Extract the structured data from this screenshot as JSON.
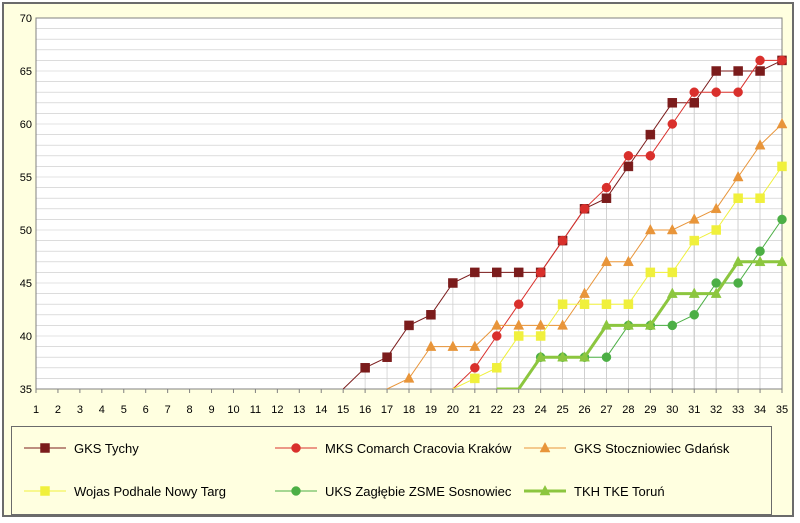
{
  "chart_data": {
    "type": "line",
    "title": "",
    "xlabel": "",
    "ylabel": "",
    "x": [
      1,
      2,
      3,
      4,
      5,
      6,
      7,
      8,
      9,
      10,
      11,
      12,
      13,
      14,
      15,
      16,
      17,
      18,
      19,
      20,
      21,
      22,
      23,
      24,
      25,
      26,
      27,
      28,
      29,
      30,
      31,
      32,
      33,
      34,
      35
    ],
    "xlim": [
      1,
      35
    ],
    "ylim": [
      35,
      70
    ],
    "y_ticks": [
      35,
      40,
      45,
      50,
      55,
      60,
      65,
      70
    ],
    "grid": true,
    "legend_position": "bottom",
    "series": [
      {
        "name": "GKS Tychy",
        "color": "#7b1c1c",
        "marker": "square",
        "width": 1,
        "points": [
          [
            15,
            35
          ],
          [
            16,
            37
          ],
          [
            17,
            38
          ],
          [
            18,
            41
          ],
          [
            19,
            42
          ],
          [
            20,
            45
          ],
          [
            21,
            46
          ],
          [
            22,
            46
          ],
          [
            23,
            46
          ],
          [
            24,
            46
          ],
          [
            25,
            49
          ],
          [
            26,
            52
          ],
          [
            27,
            53
          ],
          [
            28,
            56
          ],
          [
            29,
            59
          ],
          [
            30,
            62
          ],
          [
            31,
            62
          ],
          [
            32,
            65
          ],
          [
            33,
            65
          ],
          [
            34,
            65
          ],
          [
            35,
            66
          ]
        ]
      },
      {
        "name": "MKS Comarch Cracovia Kraków",
        "color": "#d9302c",
        "marker": "circle",
        "width": 1,
        "points": [
          [
            20,
            35
          ],
          [
            21,
            37
          ],
          [
            22,
            40
          ],
          [
            23,
            43
          ],
          [
            24,
            46
          ],
          [
            25,
            49
          ],
          [
            26,
            52
          ],
          [
            27,
            54
          ],
          [
            28,
            57
          ],
          [
            29,
            57
          ],
          [
            30,
            60
          ],
          [
            31,
            63
          ],
          [
            32,
            63
          ],
          [
            33,
            63
          ],
          [
            34,
            66
          ],
          [
            35,
            66
          ]
        ]
      },
      {
        "name": "GKS Stoczniowiec Gdańsk",
        "color": "#e8953a",
        "marker": "triangle",
        "width": 1,
        "points": [
          [
            17,
            35
          ],
          [
            18,
            36
          ],
          [
            19,
            39
          ],
          [
            20,
            39
          ],
          [
            21,
            39
          ],
          [
            22,
            41
          ],
          [
            23,
            41
          ],
          [
            24,
            41
          ],
          [
            25,
            41
          ],
          [
            26,
            44
          ],
          [
            27,
            47
          ],
          [
            28,
            47
          ],
          [
            29,
            50
          ],
          [
            30,
            50
          ],
          [
            31,
            51
          ],
          [
            32,
            52
          ],
          [
            33,
            55
          ],
          [
            34,
            58
          ],
          [
            35,
            60
          ]
        ]
      },
      {
        "name": "Wojas Podhale Nowy Targ",
        "color": "#f0f03c",
        "marker": "square",
        "width": 1,
        "points": [
          [
            20,
            35
          ],
          [
            21,
            36
          ],
          [
            22,
            37
          ],
          [
            23,
            40
          ],
          [
            24,
            40
          ],
          [
            25,
            43
          ],
          [
            26,
            43
          ],
          [
            27,
            43
          ],
          [
            28,
            43
          ],
          [
            29,
            46
          ],
          [
            30,
            46
          ],
          [
            31,
            49
          ],
          [
            32,
            50
          ],
          [
            33,
            53
          ],
          [
            34,
            53
          ],
          [
            35,
            56
          ]
        ]
      },
      {
        "name": "UKS Zagłębie ZSME Sosnowiec",
        "color": "#4caf45",
        "marker": "circle",
        "width": 1,
        "points": [
          [
            22,
            35
          ],
          [
            23,
            35
          ],
          [
            24,
            38
          ],
          [
            25,
            38
          ],
          [
            26,
            38
          ],
          [
            27,
            38
          ],
          [
            28,
            41
          ],
          [
            29,
            41
          ],
          [
            30,
            41
          ],
          [
            31,
            42
          ],
          [
            32,
            45
          ],
          [
            33,
            45
          ],
          [
            34,
            48
          ],
          [
            35,
            51
          ]
        ]
      },
      {
        "name": "TKH TKE Toruń",
        "color": "#8cc63f",
        "marker": "triangle",
        "width": 3,
        "points": [
          [
            22,
            35
          ],
          [
            23,
            35
          ],
          [
            24,
            38
          ],
          [
            25,
            38
          ],
          [
            26,
            38
          ],
          [
            27,
            41
          ],
          [
            28,
            41
          ],
          [
            29,
            41
          ],
          [
            30,
            44
          ],
          [
            31,
            44
          ],
          [
            32,
            44
          ],
          [
            33,
            47
          ],
          [
            34,
            47
          ],
          [
            35,
            47
          ]
        ]
      }
    ]
  }
}
